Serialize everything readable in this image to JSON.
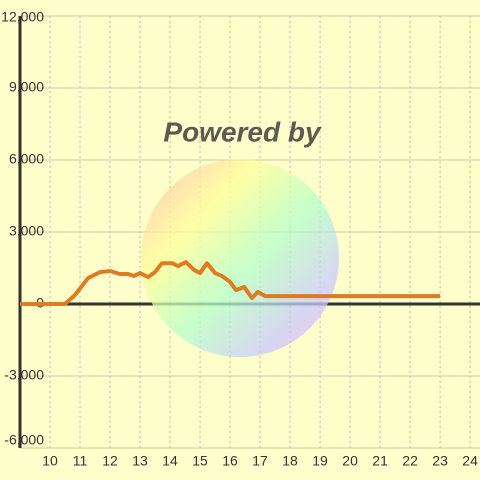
{
  "chart_data": {
    "type": "line",
    "watermark": "Powered by",
    "x": [
      9,
      10.5,
      10.83,
      11.27,
      11.67,
      12,
      12.33,
      12.6,
      12.8,
      13,
      13.27,
      13.5,
      13.73,
      14.07,
      14.27,
      14.53,
      14.8,
      15,
      15.23,
      15.5,
      15.73,
      16,
      16.2,
      16.47,
      16.73,
      16.93,
      17.17,
      17.67,
      23
    ],
    "series": [
      {
        "color": "#e07b22",
        "values": [
          0,
          0,
          375,
          1080,
          1330,
          1375,
          1250,
          1250,
          1170,
          1290,
          1125,
          1330,
          1700,
          1700,
          1580,
          1750,
          1420,
          1290,
          1700,
          1290,
          1170,
          920,
          580,
          710,
          250,
          500,
          330,
          330,
          330
        ]
      }
    ],
    "xlim": [
      9,
      24.33
    ],
    "ylim": [
      -6000,
      12000
    ],
    "xticks": [
      10,
      11,
      12,
      13,
      14,
      15,
      16,
      17,
      18,
      19,
      20,
      21,
      22,
      23,
      24
    ],
    "yticks": [
      {
        "value": -6000,
        "label": "-6,000"
      },
      {
        "value": -3000,
        "label": "-3,000"
      },
      0,
      {
        "value": 3000,
        "label": "3,000"
      },
      {
        "value": 6000,
        "label": "6,000"
      },
      {
        "value": 9000,
        "label": "9,000"
      },
      {
        "value": 12000,
        "label": "12,000"
      }
    ],
    "grid": true
  }
}
